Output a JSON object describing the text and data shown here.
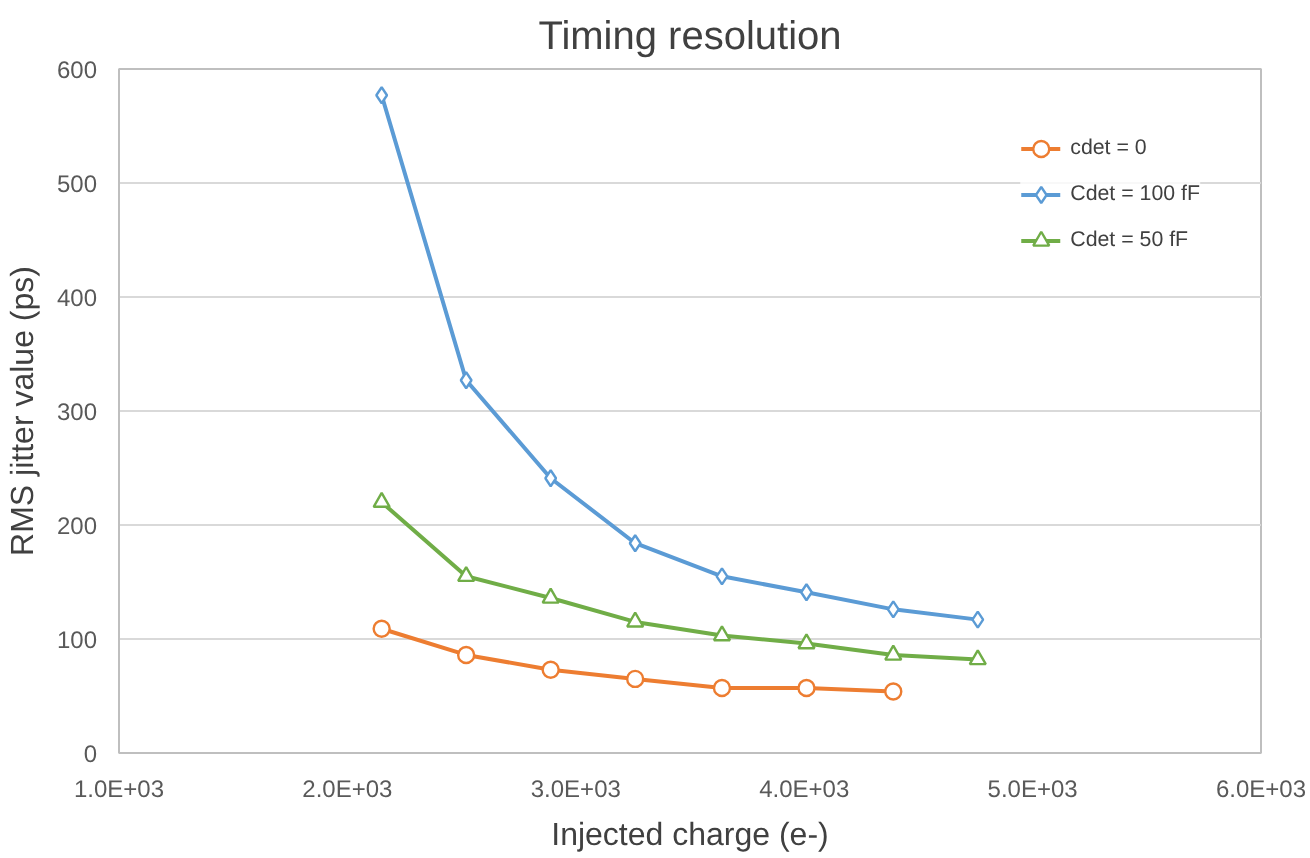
{
  "chart_data": {
    "type": "line",
    "title": "Timing resolution",
    "xlabel": "Injected charge (e-)",
    "ylabel": "RMS jitter value (ps)",
    "xlim": [
      1000,
      6000
    ],
    "xticks": [
      {
        "value": 1000,
        "label": "1.0E+03"
      },
      {
        "value": 2000,
        "label": "2.0E+03"
      },
      {
        "value": 3000,
        "label": "3.0E+03"
      },
      {
        "value": 4000,
        "label": "4.0E+03"
      },
      {
        "value": 5000,
        "label": "5.0E+03"
      },
      {
        "value": 6000,
        "label": "6.0E+03"
      }
    ],
    "ylim": [
      0,
      600
    ],
    "yticks": [
      0,
      100,
      200,
      300,
      400,
      500,
      600
    ],
    "grid": "y",
    "legend": "top right",
    "series": [
      {
        "name": "cdet = 0",
        "color": "#ed7d31",
        "marker": "circle",
        "x": [
          2150,
          2520,
          2890,
          3260,
          3640,
          4010,
          4390
        ],
        "values": [
          109,
          86,
          73,
          65,
          57,
          57,
          54
        ]
      },
      {
        "name": "Cdet = 100 fF",
        "color": "#5b9bd5",
        "marker": "diamond",
        "x": [
          2150,
          2520,
          2890,
          3260,
          3640,
          4010,
          4390,
          4760
        ],
        "values": [
          577,
          327,
          241,
          184,
          155,
          141,
          126,
          117
        ]
      },
      {
        "name": "Cdet = 50 fF",
        "color": "#70ad47",
        "marker": "triangle",
        "x": [
          2150,
          2520,
          2890,
          3260,
          3640,
          4010,
          4390,
          4760
        ],
        "values": [
          220,
          155,
          136,
          115,
          103,
          96,
          86,
          82
        ]
      }
    ]
  }
}
